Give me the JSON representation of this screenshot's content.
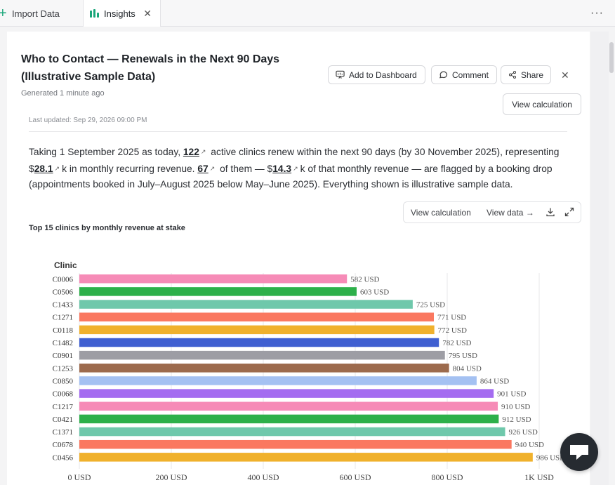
{
  "tabs": {
    "import_label": "Import Data",
    "insights_label": "Insights",
    "close_glyph": "✕",
    "more_glyph": "···"
  },
  "header": {
    "title": "Who to Contact — Renewals in the Next 90 Days (Illustrative Sample Data)",
    "generated": "Generated 1 minute ago"
  },
  "toolbar": {
    "dashboard_label": "Add to Dashboard",
    "comment_label": "Comment",
    "share_label": "Share",
    "close_glyph": "✕",
    "view_calculation_label": "View calculation"
  },
  "last_updated": "Last updated: Sep 29, 2026 09:00 PM",
  "summary": {
    "p1": "Taking 1 September 2025 as today, ",
    "n1": "122",
    "p2": " active clinics renew within the next 90 days (by 30 November 2025), representing $",
    "n2": "28.1",
    "p3": "k in monthly recurring revenue. ",
    "n3": "67",
    "p4": " of them — $",
    "n4": "14.3",
    "p5": "k of that monthly revenue — are flagged by a booking drop (appointments booked in July–August 2025 below May–June 2025). Everything shown is illustrative sample data."
  },
  "chart_tools": {
    "view_calculation": "View calculation",
    "view_data": "View data →"
  },
  "chart_title": "Top 15 clinics by monthly revenue at stake",
  "chart_data": {
    "type": "bar",
    "orientation": "horizontal",
    "ylabel": "Clinic",
    "categories": [
      "C0006",
      "C0506",
      "C1433",
      "C1271",
      "C0118",
      "C1482",
      "C0901",
      "C1253",
      "C0850",
      "C0068",
      "C1217",
      "C0421",
      "C1371",
      "C0678",
      "C0456"
    ],
    "values": [
      582,
      603,
      725,
      771,
      772,
      782,
      795,
      804,
      864,
      901,
      910,
      912,
      926,
      940,
      986
    ],
    "value_suffix": " USD",
    "colors": [
      "#f68bb7",
      "#2db04a",
      "#6fc8ab",
      "#fa7860",
      "#f0b12c",
      "#3f5fd1",
      "#9d9da4",
      "#9c6a4d",
      "#a4c1f2",
      "#a46cf0",
      "#f68bb7",
      "#2db04a",
      "#6fc8ab",
      "#fa7860",
      "#f0b12c"
    ],
    "xlim": [
      0,
      1000
    ],
    "xticks": [
      0,
      200,
      400,
      600,
      800,
      1000
    ],
    "xtick_labels": [
      "0 USD",
      "200 USD",
      "400 USD",
      "600 USD",
      "800 USD",
      "1K USD"
    ],
    "grid": true
  }
}
